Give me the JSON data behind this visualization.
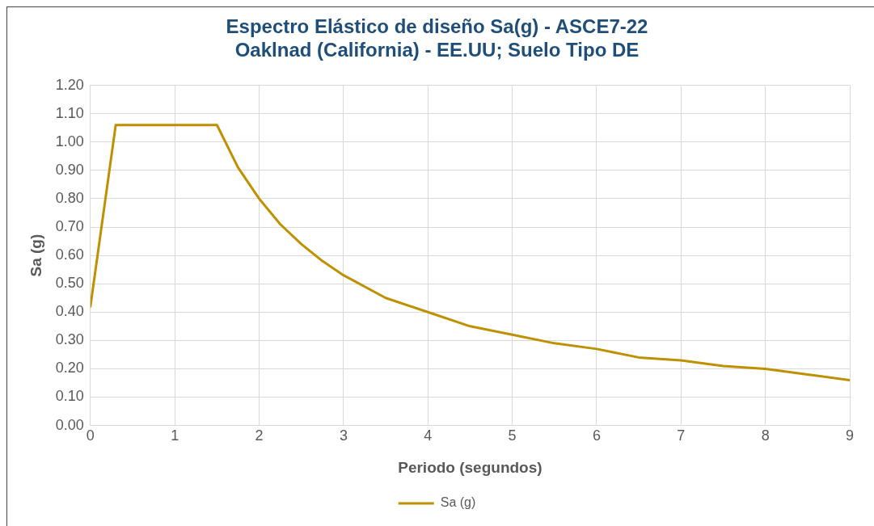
{
  "chart_data": {
    "type": "line",
    "title": "Espectro Elástico de diseño Sa(g) - ASCE7-22\nOaklnad (California) - EE.UU; Suelo Tipo DE",
    "xlabel": "Periodo (segundos)",
    "ylabel": "Sa (g)",
    "x": [
      0,
      0.3,
      1.5,
      1.75,
      2,
      2.25,
      2.5,
      2.75,
      3,
      3.5,
      4,
      4.5,
      5,
      5.5,
      6,
      6.5,
      7,
      7.5,
      8,
      8.5,
      9
    ],
    "series": [
      {
        "name": "Sa (g)",
        "color": "#bf9000",
        "values": [
          0.42,
          1.06,
          1.06,
          0.91,
          0.8,
          0.71,
          0.64,
          0.58,
          0.53,
          0.45,
          0.4,
          0.35,
          0.32,
          0.29,
          0.27,
          0.24,
          0.23,
          0.21,
          0.2,
          0.18,
          0.16
        ]
      }
    ],
    "xlim": [
      0,
      9
    ],
    "xticks": [
      0,
      1,
      2,
      3,
      4,
      5,
      6,
      7,
      8,
      9
    ],
    "ylim": [
      0,
      1.2
    ],
    "yticks": [
      {
        "value": 0,
        "label": "0.00"
      },
      {
        "value": 0.1,
        "label": "0.10"
      },
      {
        "value": 0.2,
        "label": "0.20"
      },
      {
        "value": 0.3,
        "label": "0.30"
      },
      {
        "value": 0.4,
        "label": "0.40"
      },
      {
        "value": 0.5,
        "label": "0.50"
      },
      {
        "value": 0.6,
        "label": "0.60"
      },
      {
        "value": 0.7,
        "label": "0.70"
      },
      {
        "value": 0.8,
        "label": "0.80"
      },
      {
        "value": 0.9,
        "label": "0.90"
      },
      {
        "value": 1,
        "label": "1.00"
      },
      {
        "value": 1.1,
        "label": "1.10"
      },
      {
        "value": 1.2,
        "label": "1.20"
      }
    ],
    "grid": true,
    "legend": "bottom",
    "marker": "none",
    "line_style": "solid"
  }
}
